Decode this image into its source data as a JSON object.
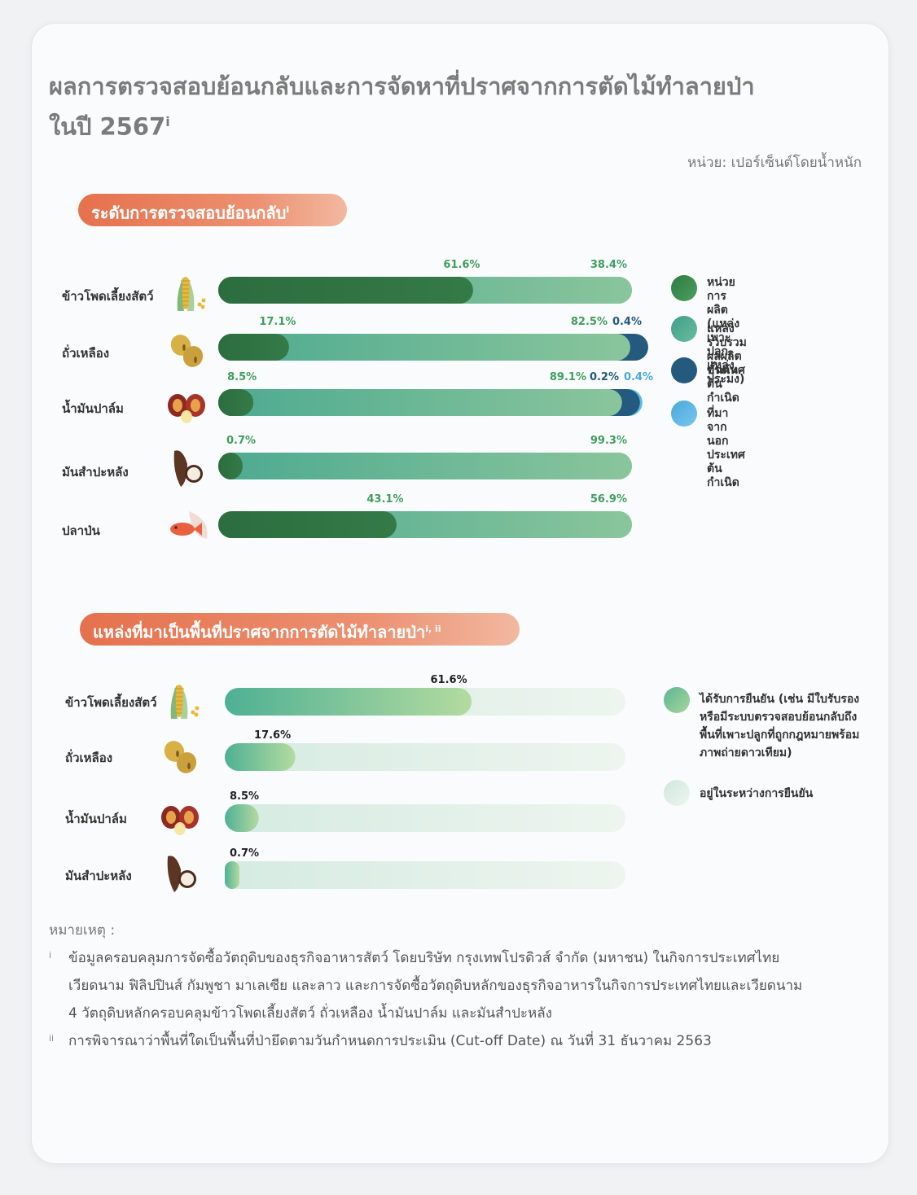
{
  "header": {
    "title_line1": "ผลการตรวจสอบย้อนกลับและการจัดหาที่ปราศจากการตัดไม้ทำลายป่า",
    "title_line2": "ในปี 2567",
    "title_sup": "i",
    "unit": "หน่วย: เปอร์เซ็นต์โดยน้ำหนัก"
  },
  "section1": {
    "heading": "ระดับการตรวจสอบย้อนกลับ",
    "heading_sup": "i",
    "legend": [
      {
        "label": "หน่วยการผลิต\n(แหล่งเพาะปลูก, แหล่งประมง)",
        "color": "#3e9150"
      },
      {
        "label": "แหล่งรวบรวมผลผลิตขั้นต้น",
        "color": "#4daa90"
      },
      {
        "label": "ประเทศต้นกำเนิด",
        "color": "#235a7e"
      },
      {
        "label": "ที่มาจากนอกประเทศต้นกำเนิด",
        "color": "#5cb8e8"
      }
    ]
  },
  "section2": {
    "heading": "แหล่งที่มาเป็นพื้นที่ปราศจากการตัดไม้ทำลายป่า",
    "heading_sup": "i, ii",
    "legend": [
      {
        "label": "ได้รับการยืนยัน (เช่น มีใบรับรอง\nหรือมีระบบตรวจสอบย้อนกลับถึง\nพื้นที่เพาะปลูกที่ถูกกฎหมายพร้อม\nภาพถ่ายดาวเทียม)",
        "color": "#7cc596"
      },
      {
        "label": "อยู่ในระหว่างการยืนยัน",
        "color": "#dceee6"
      }
    ]
  },
  "chart_data": [
    {
      "type": "bar",
      "stacked": true,
      "orientation": "horizontal",
      "title": "ระดับการตรวจสอบย้อนกลับ",
      "unit": "หน่วย: เปอร์เซ็นต์โดยน้ำหนัก",
      "categories": [
        "ข้าวโพดเลี้ยงสัตว์",
        "ถั่วเหลือง",
        "น้ำมันปาล์ม",
        "มันสำปะหลัง",
        "ปลาป่น"
      ],
      "category_icons": [
        "corn-icon",
        "soybean-icon",
        "palm-fruit-icon",
        "cassava-icon",
        "fish-icon"
      ],
      "series": [
        {
          "name": "หน่วยการผลิต (แหล่งเพาะปลูก, แหล่งประมง)",
          "values": [
            61.6,
            17.1,
            8.5,
            0.7,
            43.1
          ],
          "labels": [
            "61.6%",
            "17.1%",
            "8.5%",
            "0.7%",
            "43.1%"
          ],
          "color": "#2f7442"
        },
        {
          "name": "แหล่งรวบรวมผลผลิตขั้นต้น",
          "values": [
            38.4,
            82.5,
            89.1,
            99.3,
            56.9
          ],
          "labels": [
            "38.4%",
            "82.5%",
            "89.1%",
            "99.3%",
            "56.9%"
          ],
          "color": "#5db89a"
        },
        {
          "name": "ประเทศต้นกำเนิด",
          "values": [
            0,
            0.4,
            0.2,
            0,
            0
          ],
          "labels": [
            "",
            "0.4%",
            "0.2%",
            "",
            ""
          ],
          "color": "#235a7e"
        },
        {
          "name": "ที่มาจากนอกประเทศต้นกำเนิด",
          "values": [
            0,
            0,
            0.4,
            0,
            0
          ],
          "labels": [
            "",
            "",
            "0.4%",
            "",
            ""
          ],
          "color": "#5cb8e8"
        }
      ],
      "xlim": [
        0,
        100
      ]
    },
    {
      "type": "bar",
      "orientation": "horizontal",
      "title": "แหล่งที่มาเป็นพื้นที่ปราศจากการตัดไม้ทำลายป่า",
      "categories": [
        "ข้าวโพดเลี้ยงสัตว์",
        "ถั่วเหลือง",
        "น้ำมันปาล์ม",
        "มันสำปะหลัง"
      ],
      "category_icons": [
        "corn-icon",
        "soybean-icon",
        "palm-fruit-icon",
        "cassava-icon"
      ],
      "series": [
        {
          "name": "ได้รับการยืนยัน",
          "values": [
            61.6,
            17.6,
            8.5,
            0.7
          ],
          "labels": [
            "61.6%",
            "17.6%",
            "8.5%",
            "0.7%"
          ]
        }
      ],
      "xlim": [
        0,
        100
      ]
    }
  ],
  "notes": {
    "title": "หมายเหตุ :",
    "items": [
      {
        "mark": "i",
        "lines": [
          "ข้อมูลครอบคลุมการจัดซื้อวัตถุดิบของธุรกิจอาหารสัตว์ โดยบริษัท กรุงเทพโปรดิวส์ จำกัด (มหาชน) ในกิจการประเทศไทย",
          "เวียดนาม ฟิลิปปินส์ กัมพูชา มาเลเซีย และลาว และการจัดซื้อวัตถุดิบหลักของธุรกิจอาหารในกิจการประเทศไทยและเวียดนาม",
          "4 วัตถุดิบหลักครอบคลุมข้าวโพดเลี้ยงสัตว์ ถั่วเหลือง น้ำมันปาล์ม และมันสำปะหลัง"
        ]
      },
      {
        "mark": "ii",
        "lines": [
          "การพิจารณาว่าพื้นที่ใดเป็นพื้นที่ป่ายึดตามวันกำหนดการประเมิน (Cut-off Date) ณ วันที่ 31 ธันวาคม 2563"
        ]
      }
    ]
  }
}
